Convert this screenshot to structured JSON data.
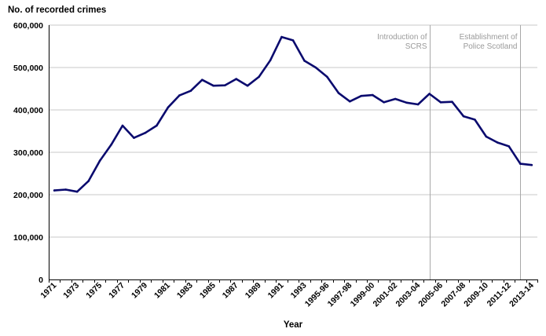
{
  "chart_data": {
    "type": "line",
    "ylabel": "No. of recorded crimes",
    "xlabel": "Year",
    "ylim": [
      0,
      600000
    ],
    "yticks": [
      0,
      100000,
      200000,
      300000,
      400000,
      500000,
      600000
    ],
    "ytick_labels": [
      "0",
      "100,000",
      "200,000",
      "300,000",
      "400,000",
      "500,000",
      "600,000"
    ],
    "grid": "horizontal",
    "line_color": "#0a0a6e",
    "x": [
      "1971",
      "1972",
      "1973",
      "1974",
      "1975",
      "1976",
      "1977",
      "1978",
      "1979",
      "1980",
      "1981",
      "1982",
      "1983",
      "1984",
      "1985",
      "1986",
      "1987",
      "1988",
      "1989",
      "1990",
      "1991",
      "1992",
      "1993",
      "1994",
      "1995-96",
      "1996-97",
      "1997-98",
      "1998-99",
      "1999-00",
      "2000-01",
      "2001-02",
      "2002-03",
      "2003-04",
      "2004-05",
      "2005-06",
      "2006-07",
      "2007-08",
      "2008-09",
      "2009-10",
      "2010-11",
      "2011-12",
      "2012-13",
      "2013-14"
    ],
    "xtick_labels": [
      "1971",
      "1973",
      "1975",
      "1977",
      "1979",
      "1981",
      "1983",
      "1985",
      "1987",
      "1989",
      "1991",
      "1993",
      "1995-96",
      "1997-98",
      "1999-00",
      "2001-02",
      "2003-04",
      "2005-06",
      "2007-08",
      "2009-10",
      "2011-12",
      "2013-14"
    ],
    "series": [
      {
        "values": [
          210000,
          212000,
          207000,
          232000,
          280000,
          318000,
          363000,
          334000,
          346000,
          363000,
          406000,
          434000,
          445000,
          471000,
          457000,
          458000,
          473000,
          457000,
          478000,
          517000,
          572000,
          564000,
          516000,
          500000,
          478000,
          440000,
          420000,
          433000,
          435000,
          418000,
          426000,
          417000,
          413000,
          438000,
          418000,
          419000,
          385000,
          377000,
          337000,
          323000,
          314000,
          273000,
          270000
        ]
      }
    ],
    "annotations": [
      {
        "text_lines": [
          "Introduction of",
          "SCRS"
        ],
        "at": "2004-05"
      },
      {
        "text_lines": [
          "Establishment of",
          "Police Scotland"
        ],
        "at": "2012-13"
      }
    ],
    "annotation_line_color": "#a8a8a8",
    "grid_color": "#c8c8c8"
  }
}
